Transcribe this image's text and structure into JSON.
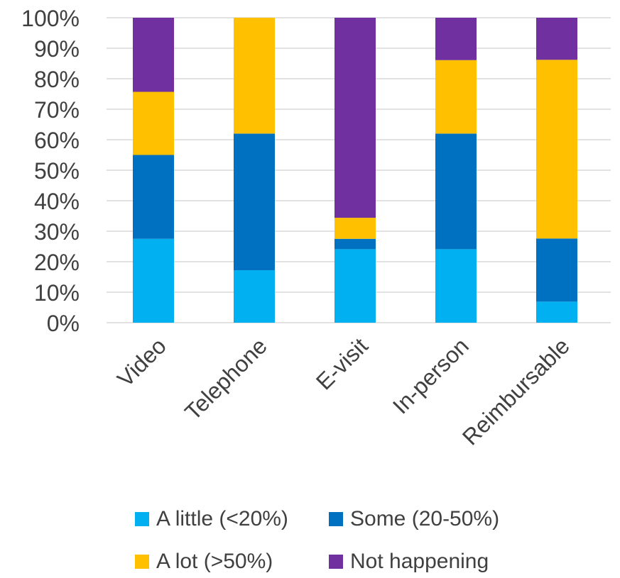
{
  "chart_data": {
    "type": "bar",
    "stacked": true,
    "categories": [
      "Video",
      "Telephone",
      "E-visit",
      "In-person",
      "Reimbursable"
    ],
    "series": [
      {
        "name": "A little (<20%)",
        "color": "#00B0F0",
        "values": [
          27.5,
          17.2,
          24.1,
          24.1,
          6.9
        ]
      },
      {
        "name": "Some (20-50%)",
        "color": "#0070C0",
        "values": [
          27.5,
          44.8,
          3.4,
          37.9,
          20.7
        ]
      },
      {
        "name": "A lot (>50%)",
        "color": "#FFC000",
        "values": [
          20.7,
          38.0,
          6.9,
          24.1,
          58.6
        ]
      },
      {
        "name": "Not happening",
        "color": "#7030A0",
        "values": [
          24.3,
          0.0,
          65.6,
          13.9,
          13.8
        ]
      }
    ],
    "ylim": [
      0,
      100
    ],
    "yticks": [
      "0%",
      "10%",
      "20%",
      "30%",
      "40%",
      "50%",
      "60%",
      "70%",
      "80%",
      "90%",
      "100%"
    ],
    "grid": true,
    "legend_position": "bottom"
  }
}
